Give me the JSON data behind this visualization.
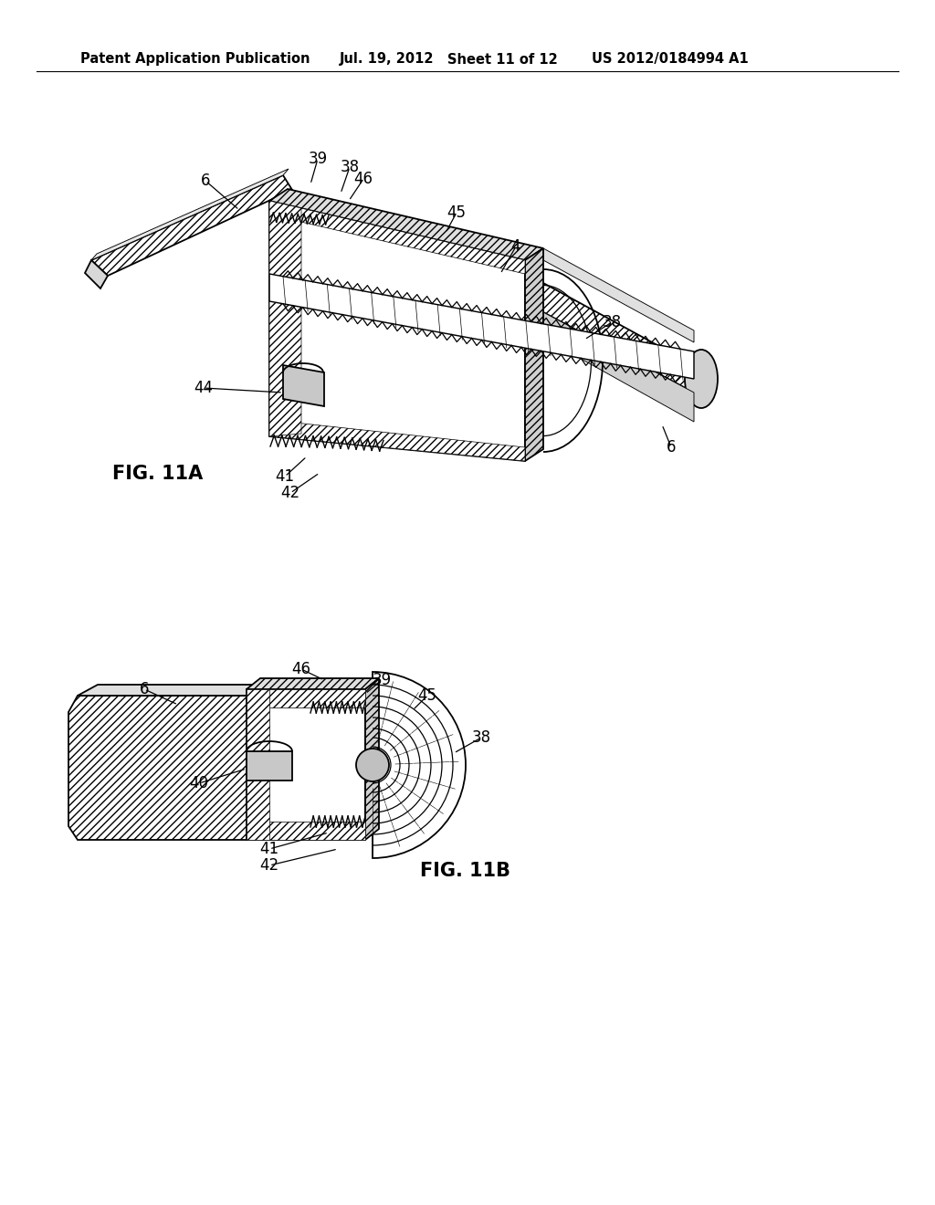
{
  "background_color": "#ffffff",
  "header_text": "Patent Application Publication",
  "header_date": "Jul. 19, 2012",
  "header_sheet": "Sheet 11 of 12",
  "header_patent": "US 2012/0184994 A1",
  "fig_label_A": "FIG. 11A",
  "fig_label_B": "FIG. 11B",
  "header_fontsize": 10.5,
  "label_fontsize": 12,
  "fig_label_fontsize": 15,
  "text_color": "#000000",
  "line_color": "#000000"
}
